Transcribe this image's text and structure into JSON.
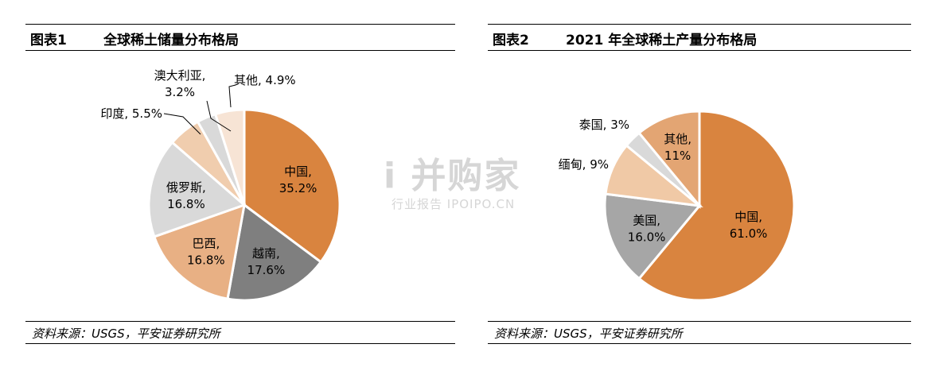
{
  "watermark": {
    "main": "i 并购家",
    "sub": "行业报告 IPOIPO.CN"
  },
  "chart_data": [
    {
      "type": "pie",
      "figure_label": "图表1",
      "title": "全球稀土储量分布格局",
      "source": "资料来源：USGS，平安证券研究所",
      "slices": [
        {
          "name": "中国",
          "value": 35.2,
          "label": "35.2%",
          "color": "#D9843F"
        },
        {
          "name": "越南",
          "value": 17.6,
          "label": "17.6%",
          "color": "#7F7F7F"
        },
        {
          "name": "巴西",
          "value": 16.8,
          "label": "16.8%",
          "color": "#E8B084"
        },
        {
          "name": "俄罗斯",
          "value": 16.8,
          "label": "16.8%",
          "color": "#D9D9D9"
        },
        {
          "name": "印度",
          "value": 5.5,
          "label": "5.5%",
          "color": "#F0CDAE"
        },
        {
          "name": "澳大利亚",
          "value": 3.2,
          "label": "3.2%",
          "color": "#D9D9D9"
        },
        {
          "name": "其他",
          "value": 4.9,
          "label": "4.9%",
          "color": "#F7E4D5"
        }
      ]
    },
    {
      "type": "pie",
      "figure_label": "图表2",
      "title": "2021 年全球稀土产量分布格局",
      "source": "资料来源：USGS，平安证券研究所",
      "slices": [
        {
          "name": "中国",
          "value": 61.0,
          "label": "61.0%",
          "color": "#D9843F"
        },
        {
          "name": "美国",
          "value": 16.0,
          "label": "16.0%",
          "color": "#A6A6A6"
        },
        {
          "name": "缅甸",
          "value": 9,
          "label": "9%",
          "color": "#F0C9A6"
        },
        {
          "name": "泰国",
          "value": 3,
          "label": "3%",
          "color": "#D9D9D9"
        },
        {
          "name": "其他",
          "value": 11,
          "label": "11%",
          "color": "#E3A573"
        }
      ]
    }
  ]
}
